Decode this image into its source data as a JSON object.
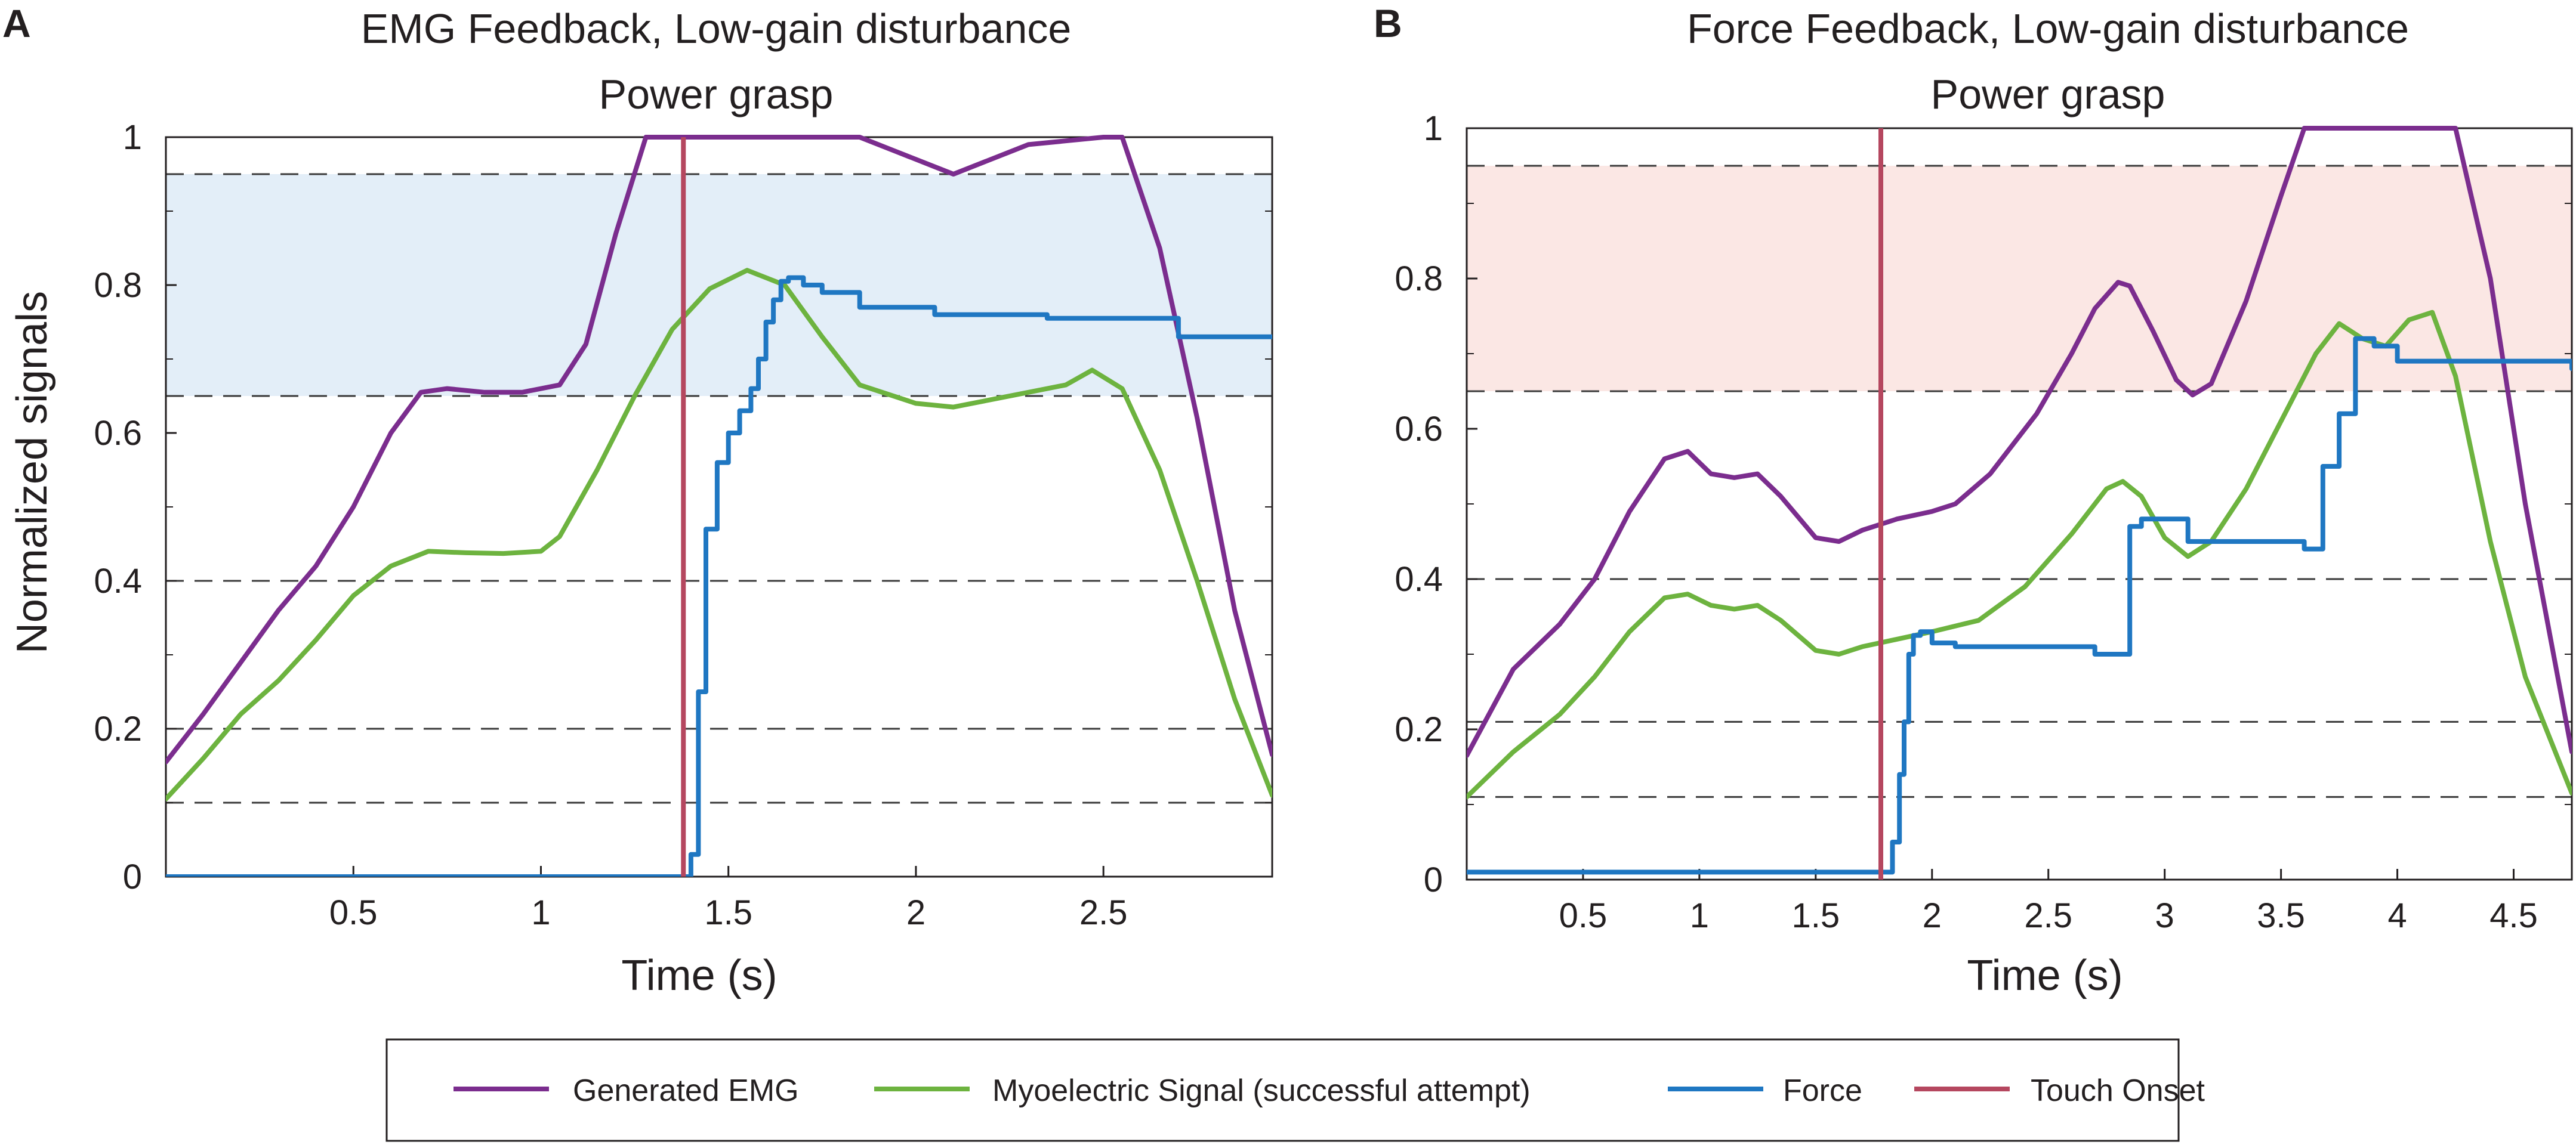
{
  "colors": {
    "emg": "#7b2d8e",
    "myo": "#6db33f",
    "force": "#1f77c2",
    "touch": "#b5475f",
    "band_a": "#e3eef8",
    "band_b": "#fbe7e4"
  },
  "legend": {
    "items": [
      {
        "label": "Generated EMG",
        "color_key": "emg"
      },
      {
        "label": "Myoelectric Signal (successful attempt)",
        "color_key": "myo"
      },
      {
        "label": "Force",
        "color_key": "force"
      },
      {
        "label": "Touch Onset",
        "color_key": "touch"
      }
    ]
  },
  "chart_data": [
    {
      "type": "line",
      "panel_label": "A",
      "title": "EMG Feedback, Low-gain disturbance",
      "subtitle": "Power grasp",
      "xlabel": "Time (s)",
      "ylabel": "Normalized signals",
      "xlim": [
        0,
        2.95
      ],
      "ylim": [
        0,
        1
      ],
      "xticks": [
        0.5,
        1,
        1.5,
        2,
        2.5
      ],
      "xtick_labels": [
        "0.5",
        "1",
        "1.5",
        "2",
        "2.5"
      ],
      "yticks": [
        0,
        0.2,
        0.4,
        0.6,
        0.8,
        1
      ],
      "ytick_labels": [
        "0",
        "0.2",
        "0.4",
        "0.6",
        "0.8",
        "1"
      ],
      "dashed_lines": [
        0.1,
        0.2,
        0.4,
        0.65,
        0.95,
        1
      ],
      "band": {
        "from": 0.65,
        "to": 0.95,
        "color_key": "band_a"
      },
      "touch_onset_x": 1.38,
      "series": [
        {
          "name": "Generated EMG",
          "color_key": "emg",
          "x": [
            0,
            0.1,
            0.2,
            0.3,
            0.4,
            0.5,
            0.6,
            0.68,
            0.75,
            0.85,
            0.95,
            1.05,
            1.12,
            1.2,
            1.28,
            1.35,
            1.5,
            1.7,
            1.85,
            1.95,
            2.05,
            2.1,
            2.2,
            2.3,
            2.4,
            2.5,
            2.55,
            2.65,
            2.75,
            2.85,
            2.95
          ],
          "y": [
            0.155,
            0.22,
            0.29,
            0.36,
            0.42,
            0.5,
            0.6,
            0.655,
            0.66,
            0.655,
            0.655,
            0.665,
            0.72,
            0.87,
            1,
            1,
            1,
            1,
            1,
            0.98,
            0.96,
            0.95,
            0.97,
            0.99,
            0.995,
            1,
            1,
            0.85,
            0.62,
            0.36,
            0.165
          ]
        },
        {
          "name": "Myoelectric Signal (successful attempt)",
          "color_key": "myo",
          "x": [
            0,
            0.1,
            0.2,
            0.3,
            0.4,
            0.5,
            0.6,
            0.7,
            0.8,
            0.9,
            1.0,
            1.05,
            1.15,
            1.25,
            1.35,
            1.45,
            1.55,
            1.65,
            1.75,
            1.85,
            2.0,
            2.1,
            2.2,
            2.3,
            2.4,
            2.47,
            2.55,
            2.65,
            2.75,
            2.85,
            2.95
          ],
          "y": [
            0.105,
            0.16,
            0.22,
            0.265,
            0.32,
            0.38,
            0.42,
            0.44,
            0.438,
            0.437,
            0.44,
            0.46,
            0.55,
            0.65,
            0.74,
            0.795,
            0.82,
            0.8,
            0.73,
            0.665,
            0.64,
            0.635,
            0.645,
            0.655,
            0.665,
            0.685,
            0.66,
            0.55,
            0.4,
            0.24,
            0.11
          ]
        },
        {
          "name": "Force",
          "color_key": "force",
          "step": true,
          "x": [
            0,
            1.38,
            1.4,
            1.42,
            1.44,
            1.47,
            1.5,
            1.53,
            1.56,
            1.58,
            1.6,
            1.62,
            1.64,
            1.66,
            1.7,
            1.75,
            1.85,
            2.05,
            2.35,
            2.7,
            2.95
          ],
          "y": [
            0,
            0,
            0.03,
            0.25,
            0.47,
            0.56,
            0.6,
            0.63,
            0.66,
            0.7,
            0.75,
            0.78,
            0.805,
            0.81,
            0.8,
            0.79,
            0.77,
            0.76,
            0.755,
            0.73,
            0.73
          ]
        }
      ]
    },
    {
      "type": "line",
      "panel_label": "B",
      "title": "Force Feedback, Low-gain disturbance",
      "subtitle": "Power grasp",
      "xlabel": "Time (s)",
      "ylabel": "",
      "xlim": [
        0,
        4.75
      ],
      "ylim": [
        0,
        1
      ],
      "xticks": [
        0.5,
        1,
        1.5,
        2,
        2.5,
        3,
        3.5,
        4,
        4.5
      ],
      "xtick_labels": [
        "0.5",
        "1",
        "1.5",
        "2",
        "2.5",
        "3",
        "3.5",
        "4",
        "4.5"
      ],
      "yticks": [
        0,
        0.2,
        0.4,
        0.6,
        0.8,
        1
      ],
      "ytick_labels": [
        "0",
        "0.2",
        "0.4",
        "0.6",
        "0.8",
        "1"
      ],
      "dashed_lines": [
        0.11,
        0.21,
        0.4,
        0.65,
        0.95
      ],
      "band": {
        "from": 0.65,
        "to": 0.95,
        "color_key": "band_b"
      },
      "touch_onset_x": 1.78,
      "series": [
        {
          "name": "Generated EMG",
          "color_key": "emg",
          "x": [
            0,
            0.2,
            0.4,
            0.55,
            0.7,
            0.85,
            0.95,
            1.05,
            1.15,
            1.25,
            1.35,
            1.5,
            1.6,
            1.7,
            1.85,
            2.0,
            2.1,
            2.25,
            2.45,
            2.6,
            2.7,
            2.8,
            2.85,
            2.95,
            3.05,
            3.12,
            3.2,
            3.35,
            3.5,
            3.6,
            3.75,
            3.9,
            4.05,
            4.25,
            4.4,
            4.55,
            4.75
          ],
          "y": [
            0.165,
            0.28,
            0.34,
            0.4,
            0.49,
            0.56,
            0.57,
            0.54,
            0.535,
            0.54,
            0.51,
            0.455,
            0.45,
            0.465,
            0.48,
            0.49,
            0.5,
            0.54,
            0.62,
            0.7,
            0.76,
            0.795,
            0.79,
            0.73,
            0.665,
            0.645,
            0.66,
            0.77,
            0.91,
            1,
            1,
            1,
            1,
            1,
            0.8,
            0.5,
            0.17
          ]
        },
        {
          "name": "Myoelectric Signal (successful attempt)",
          "color_key": "myo",
          "x": [
            0,
            0.2,
            0.4,
            0.55,
            0.7,
            0.85,
            0.95,
            1.05,
            1.15,
            1.25,
            1.35,
            1.5,
            1.6,
            1.7,
            1.85,
            2.0,
            2.2,
            2.4,
            2.6,
            2.75,
            2.82,
            2.9,
            3.0,
            3.1,
            3.2,
            3.35,
            3.5,
            3.65,
            3.75,
            3.85,
            3.95,
            4.05,
            4.15,
            4.25,
            4.4,
            4.55,
            4.75
          ],
          "y": [
            0.11,
            0.17,
            0.22,
            0.27,
            0.33,
            0.375,
            0.38,
            0.365,
            0.36,
            0.365,
            0.345,
            0.305,
            0.3,
            0.31,
            0.32,
            0.33,
            0.345,
            0.39,
            0.46,
            0.52,
            0.53,
            0.51,
            0.455,
            0.43,
            0.45,
            0.52,
            0.61,
            0.7,
            0.74,
            0.72,
            0.71,
            0.745,
            0.755,
            0.67,
            0.45,
            0.27,
            0.115
          ]
        },
        {
          "name": "Force",
          "color_key": "force",
          "step": true,
          "x": [
            0,
            1.8,
            1.83,
            1.86,
            1.88,
            1.9,
            1.92,
            1.95,
            2.0,
            2.1,
            2.5,
            2.7,
            2.85,
            2.9,
            3.1,
            3.3,
            3.6,
            3.68,
            3.75,
            3.82,
            3.9,
            4.0,
            4.2,
            4.75
          ],
          "y": [
            0.01,
            0.01,
            0.05,
            0.14,
            0.21,
            0.3,
            0.325,
            0.33,
            0.315,
            0.31,
            0.31,
            0.3,
            0.47,
            0.48,
            0.45,
            0.45,
            0.44,
            0.55,
            0.62,
            0.72,
            0.71,
            0.69,
            0.69,
            0.68
          ]
        }
      ]
    }
  ]
}
